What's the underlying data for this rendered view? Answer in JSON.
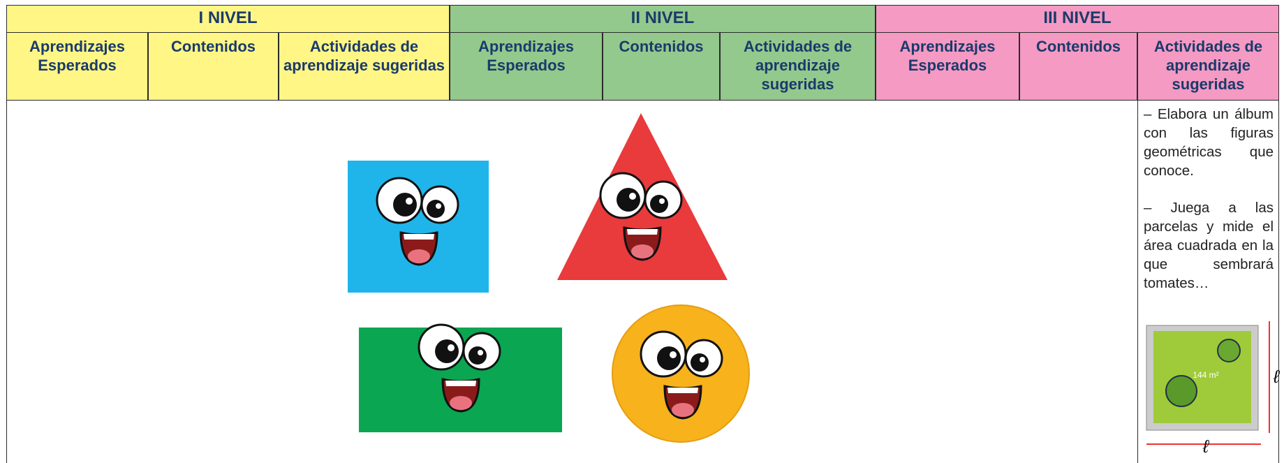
{
  "table": {
    "levels": [
      {
        "title": "I NIVEL",
        "columns": [
          "Aprendizajes Esperados",
          "Contenidos",
          "Actividades de aprendizaje sugeridas"
        ]
      },
      {
        "title": "II NIVEL",
        "columns": [
          "Aprendizajes Esperados",
          "Contenidos",
          "Actividades de aprendizaje sugeridas"
        ]
      },
      {
        "title": "III NIVEL",
        "columns": [
          "Aprendizajes Esperados",
          "Contenidos",
          "Actividades de aprendizaje sugeridas"
        ]
      }
    ],
    "activities": [
      "– Elabora un álbum con las figuras geométricas que conoce.",
      "– Juega a las parcelas y mide el área cuadrada en la que sembrará tomates…"
    ],
    "plot": {
      "area": "144 m²",
      "side_label": "ℓ",
      "bottom_label": "ℓ"
    }
  }
}
